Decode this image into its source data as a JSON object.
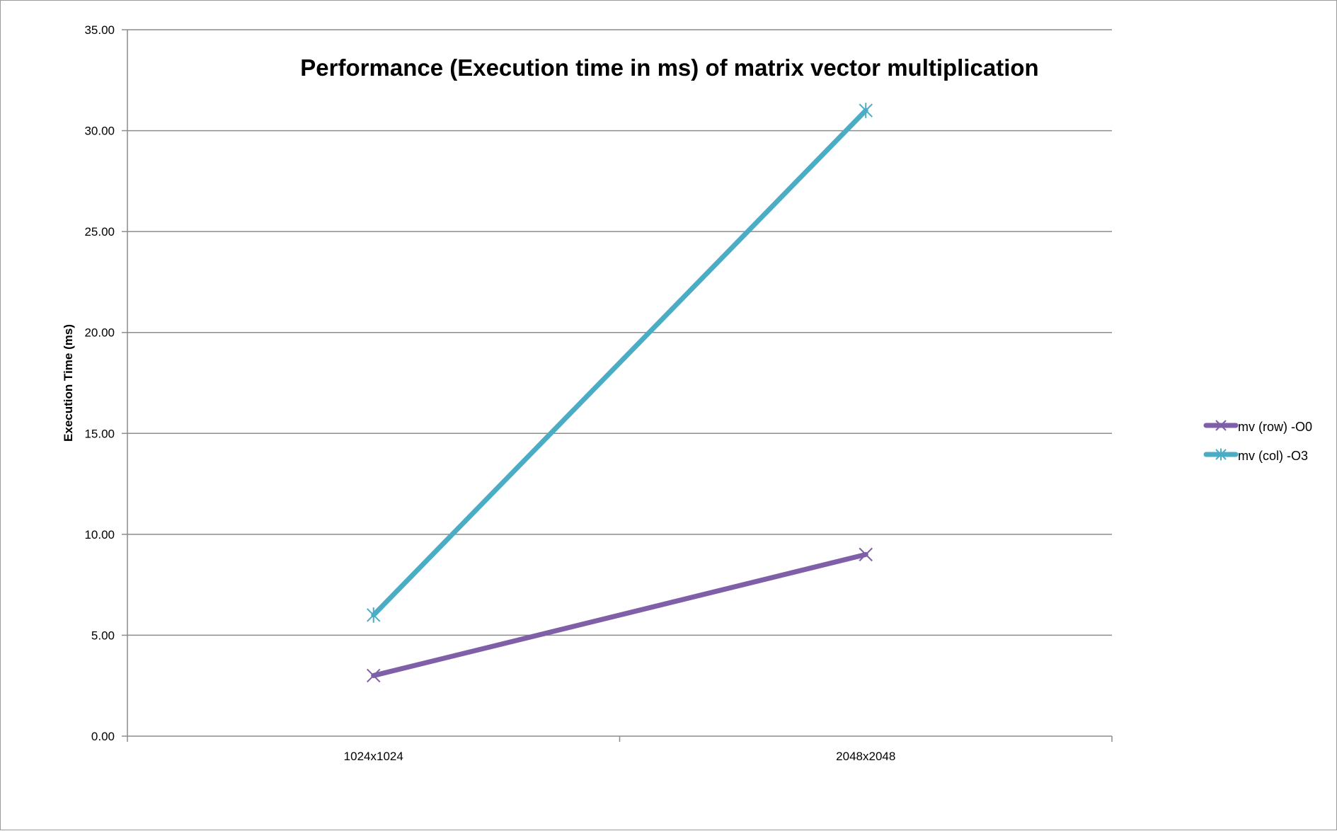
{
  "chart_data": {
    "type": "line",
    "title": "Performance (Execution time in ms) of matrix vector multiplication",
    "xlabel": "",
    "ylabel": "Execution Time (ms)",
    "categories": [
      "1024x1024",
      "2048x2048"
    ],
    "ylim": [
      0,
      35
    ],
    "yticks": [
      "0.00",
      "5.00",
      "10.00",
      "15.00",
      "20.00",
      "25.00",
      "30.00",
      "35.00"
    ],
    "grid": true,
    "legend_position": "right",
    "series": [
      {
        "name": "mv (row) -O0",
        "values": [
          3,
          9
        ],
        "color": "#7f5fa8",
        "marker": "x"
      },
      {
        "name": "mv (col) -O3",
        "values": [
          6,
          31
        ],
        "color": "#4aacc5",
        "marker": "star"
      }
    ]
  }
}
